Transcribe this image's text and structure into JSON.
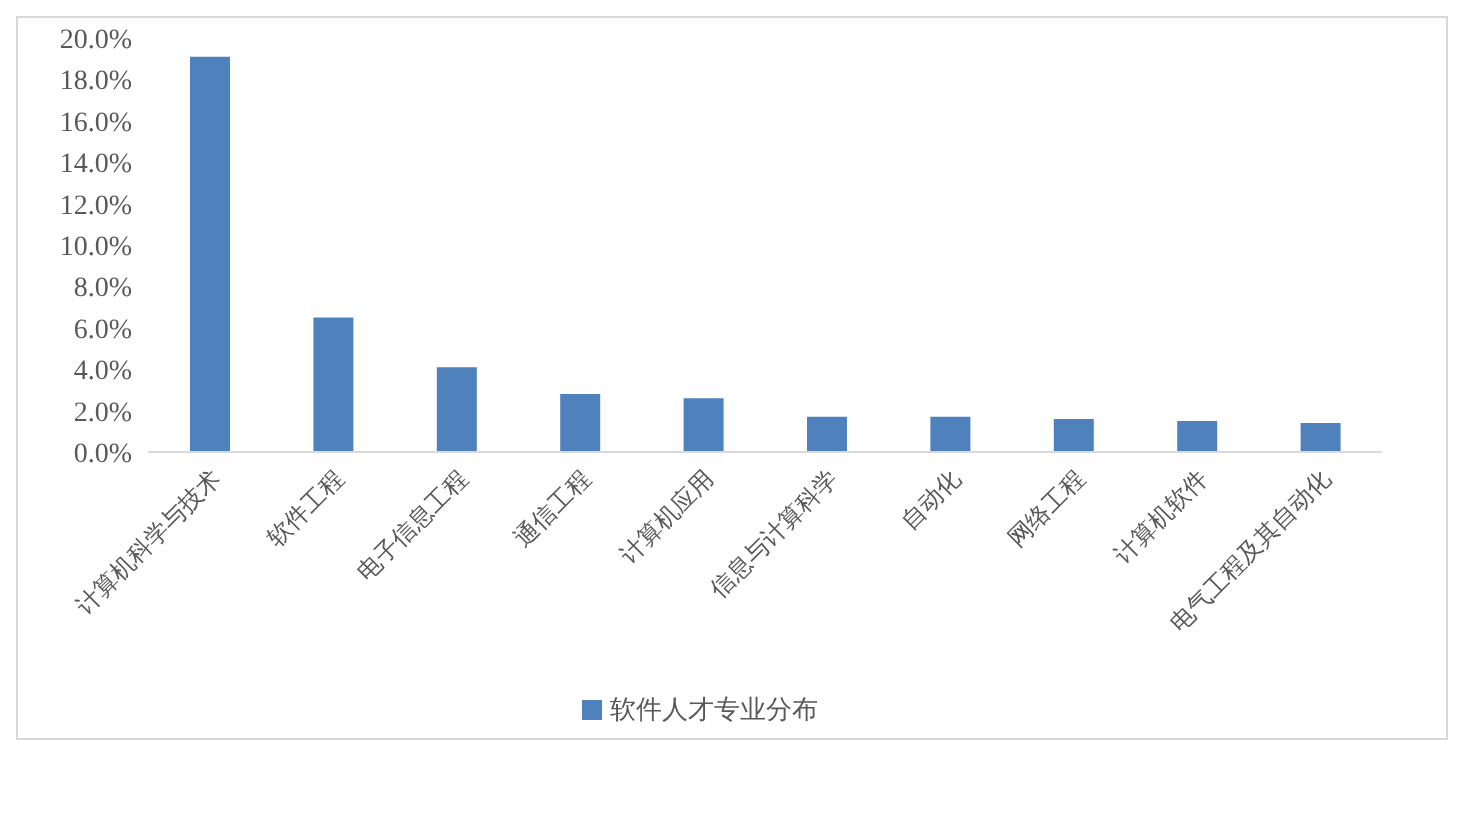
{
  "chart_data": {
    "type": "bar",
    "categories": [
      "计算机科学与技术",
      "软件工程",
      "电子信息工程",
      "通信工程",
      "计算机应用",
      "信息与计算科学",
      "自动化",
      "网络工程",
      "计算机软件",
      "电气工程及其自动化"
    ],
    "series": [
      {
        "name": "软件人才专业分布",
        "color": "#4f81bd",
        "values": [
          19.1,
          6.5,
          4.1,
          2.8,
          2.6,
          1.7,
          1.7,
          1.6,
          1.5,
          1.4
        ]
      }
    ],
    "ylim": [
      0,
      20
    ],
    "yticks": [
      {
        "value": 0,
        "label": "0.0%"
      },
      {
        "value": 2,
        "label": "2.0%"
      },
      {
        "value": 4,
        "label": "4.0%"
      },
      {
        "value": 6,
        "label": "6.0%"
      },
      {
        "value": 8,
        "label": "8.0%"
      },
      {
        "value": 10,
        "label": "10.0%"
      },
      {
        "value": 12,
        "label": "12.0%"
      },
      {
        "value": 14,
        "label": "14.0%"
      },
      {
        "value": 16,
        "label": "16.0%"
      },
      {
        "value": 18,
        "label": "18.0%"
      },
      {
        "value": 20,
        "label": "20.0%"
      }
    ],
    "grid": false,
    "legend": "bottom"
  }
}
